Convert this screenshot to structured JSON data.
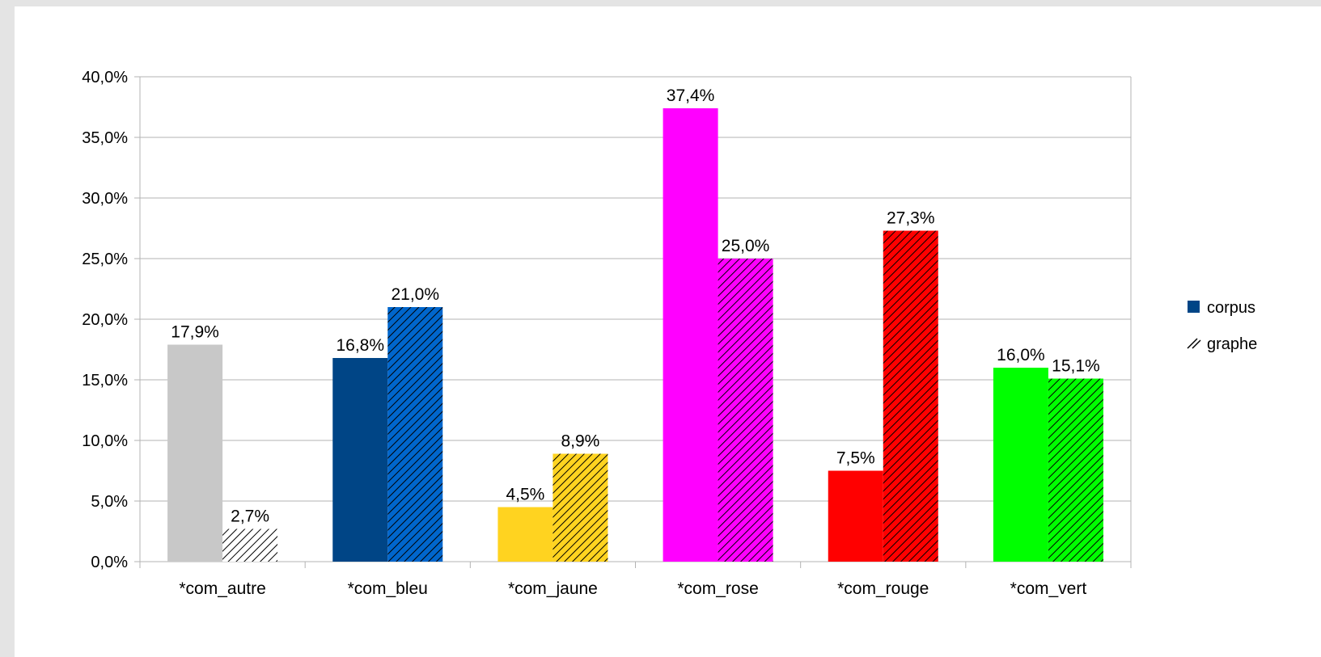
{
  "chart_data": {
    "type": "bar",
    "title": "",
    "xlabel": "",
    "ylabel": "",
    "ylim": [
      0,
      40
    ],
    "yticks": [
      0,
      5,
      10,
      15,
      20,
      25,
      30,
      35,
      40
    ],
    "ytick_format": "0,0%",
    "grid": true,
    "legend_position": "right",
    "categories": [
      "*com_autre",
      "*com_bleu",
      "*com_jaune",
      "*com_rose",
      "*com_rouge",
      "*com_vert"
    ],
    "category_colors": [
      "#c8c8c8",
      "#004586",
      "#ffd320",
      "#ff00ff",
      "#ff0000",
      "#00ff00"
    ],
    "hatch_colors": [
      "#ffffff",
      "#0066cc",
      "#ffd320",
      "#ff00ff",
      "#ff0000",
      "#00ff00"
    ],
    "series": [
      {
        "name": "corpus",
        "style": "solid",
        "values": [
          17.9,
          16.8,
          4.5,
          37.4,
          7.5,
          16.0
        ],
        "labels": [
          "17,9%",
          "16,8%",
          "4,5%",
          "37,4%",
          "7,5%",
          "16,0%"
        ]
      },
      {
        "name": "graphe",
        "style": "hatched",
        "values": [
          2.7,
          21.0,
          8.9,
          25.0,
          27.3,
          15.1
        ],
        "labels": [
          "2,7%",
          "21,0%",
          "8,9%",
          "25,0%",
          "27,3%",
          "15,1%"
        ]
      }
    ],
    "legend_marker_color": "#004586"
  }
}
